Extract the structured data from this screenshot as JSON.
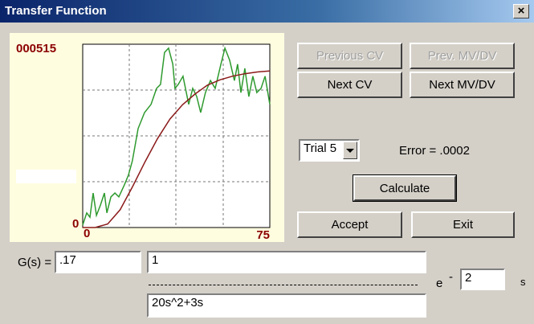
{
  "window": {
    "title": "Transfer Function",
    "close": "×"
  },
  "plot": {
    "y_max_label": "000515",
    "y_min_label": "0",
    "x_min_label": "0",
    "x_max_label": "75",
    "xlim": [
      0,
      75
    ],
    "ylim": [
      0,
      515
    ],
    "series": [
      {
        "color": "#2e9a2e",
        "x": [
          0,
          1.6,
          2.9,
          4.2,
          5.5,
          7.1,
          8.7,
          9.7,
          11.3,
          12.9,
          14.5,
          16.7,
          18.3,
          19.9,
          22.2,
          24.8,
          27.4,
          29.6,
          31.2,
          32.8,
          34.4,
          36.1,
          37,
          38.3,
          40.2,
          42.5,
          44.1,
          45.7,
          47.3,
          49.2,
          51.2,
          53.1,
          55.4,
          57,
          58.9,
          60.8,
          62.1,
          63.4,
          65,
          66.6,
          68.2,
          69.8,
          71.5,
          73.1,
          75
        ],
        "values": [
          7,
          41,
          29,
          97,
          34,
          63,
          97,
          41,
          86,
          97,
          86,
          120,
          147,
          187,
          278,
          323,
          346,
          391,
          402,
          492,
          504,
          459,
          391,
          402,
          425,
          346,
          391,
          368,
          323,
          379,
          413,
          391,
          459,
          504,
          470,
          413,
          459,
          379,
          447,
          368,
          425,
          379,
          391,
          425,
          346
        ]
      },
      {
        "color": "#8b1a1a",
        "x": [
          0,
          5,
          10,
          15,
          20,
          25,
          30,
          35,
          40,
          45,
          50,
          55,
          60,
          65,
          70,
          75
        ],
        "values": [
          0,
          0,
          10,
          50,
          115,
          185,
          250,
          305,
          345,
          375,
          400,
          415,
          425,
          432,
          437,
          440
        ]
      }
    ]
  },
  "buttons": {
    "previous_cv": "Previous CV",
    "prev_mvdv": "Prev. MV/DV",
    "next_cv": "Next CV",
    "next_mvdv": "Next MV/DV",
    "calculate": "Calculate",
    "accept": "Accept",
    "exit": "Exit"
  },
  "trial": {
    "selected": "Trial 5",
    "error": "Error = .0002"
  },
  "equation": {
    "gain_label": "G(s) =",
    "gain": ".17",
    "numerator": "1",
    "denominator": "20s^2+3s",
    "exp_base": "e",
    "exp_sign": "-",
    "delay": "2",
    "delay_unit": "s"
  }
}
